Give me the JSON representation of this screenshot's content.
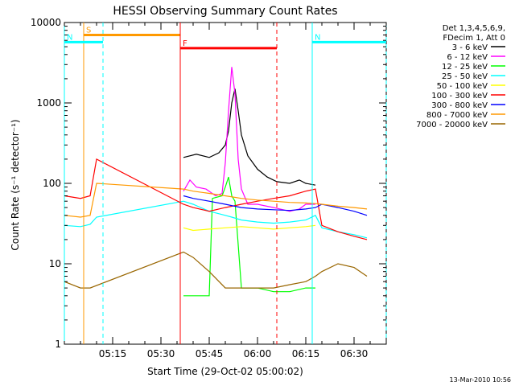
{
  "chart_data": {
    "type": "line",
    "title": "HESSI Observing Summary Count Rates",
    "xlabel": "Start Time (29-Oct-02 05:00:02)",
    "ylabel": "Count Rate (s⁻¹ detector⁻¹)",
    "yscale": "log",
    "ylim": [
      1,
      10000
    ],
    "xlim": [
      "05:00",
      "06:40"
    ],
    "x_ticks": [
      "05:15",
      "05:30",
      "05:45",
      "06:00",
      "06:15",
      "06:30"
    ],
    "y_ticks": [
      "1",
      "10",
      "100",
      "1000",
      "10000"
    ],
    "legend": {
      "placement": "right",
      "header_lines": [
        "Det 1,3,4,5,6,9,",
        "FDecim 1, Att 0"
      ]
    },
    "series": [
      {
        "name": "3 - 6 keV",
        "color": "#000000",
        "x": [
          "05:37",
          "05:41",
          "05:45",
          "05:48",
          "05:50",
          "05:51",
          "05:52",
          "05:53",
          "05:54",
          "05:55",
          "05:57",
          "06:00",
          "06:03",
          "06:06",
          "06:10",
          "06:13",
          "06:15",
          "06:18"
        ],
        "y": [
          210,
          230,
          210,
          240,
          300,
          450,
          1000,
          1500,
          800,
          400,
          220,
          150,
          120,
          105,
          100,
          110,
          100,
          95
        ]
      },
      {
        "name": "6 - 12 keV",
        "color": "#ff00ff",
        "x": [
          "05:37",
          "05:39",
          "05:41",
          "05:44",
          "05:47",
          "05:49",
          "05:50",
          "05:51",
          "05:52",
          "05:53",
          "05:54",
          "05:55",
          "05:57",
          "06:00",
          "06:05",
          "06:10",
          "06:13",
          "06:15",
          "06:18"
        ],
        "y": [
          80,
          110,
          90,
          85,
          70,
          75,
          180,
          800,
          2800,
          1300,
          200,
          85,
          55,
          55,
          50,
          45,
          48,
          55,
          55
        ]
      },
      {
        "name": "12 - 25 keV",
        "color": "#00ff00",
        "x": [
          "05:37",
          "05:42",
          "05:45",
          "05:46",
          "05:49",
          "05:50",
          "05:51",
          "05:52",
          "05:53",
          "05:55",
          "06:00",
          "06:05",
          "06:10",
          "06:15",
          "06:18"
        ],
        "y": [
          4,
          4,
          4,
          65,
          70,
          90,
          120,
          70,
          60,
          5,
          5,
          4.5,
          4.5,
          5,
          5
        ]
      },
      {
        "name": "25 - 50 keV",
        "color": "#00ffff",
        "x": [
          "05:00",
          "05:05",
          "05:08",
          "05:10",
          "05:37",
          "05:40",
          "05:45",
          "05:50",
          "05:52",
          "05:55",
          "06:00",
          "06:05",
          "06:10",
          "06:15",
          "06:18",
          "06:20",
          "06:25",
          "06:30",
          "06:34"
        ],
        "y": [
          30,
          29,
          31,
          38,
          60,
          55,
          45,
          40,
          38,
          35,
          33,
          32,
          33,
          35,
          40,
          28,
          25,
          23,
          21
        ]
      },
      {
        "name": "50 - 100 keV",
        "color": "#ffff00",
        "x": [
          "05:37",
          "05:40",
          "05:45",
          "05:50",
          "05:55",
          "06:00",
          "06:05",
          "06:10",
          "06:15",
          "06:18"
        ],
        "y": [
          28,
          26,
          27,
          28,
          29,
          28,
          27,
          28,
          29,
          30
        ]
      },
      {
        "name": "100 - 300 keV",
        "color": "#ff0000",
        "x": [
          "05:00",
          "05:05",
          "05:08",
          "05:10",
          "05:37",
          "05:40",
          "05:45",
          "05:50",
          "05:55",
          "06:00",
          "06:05",
          "06:10",
          "06:15",
          "06:18",
          "06:20",
          "06:25",
          "06:30",
          "06:34"
        ],
        "y": [
          70,
          65,
          70,
          200,
          55,
          50,
          45,
          50,
          55,
          60,
          65,
          70,
          80,
          85,
          30,
          25,
          22,
          20
        ]
      },
      {
        "name": "300 - 800 keV",
        "color": "#0000ff",
        "x": [
          "05:37",
          "05:40",
          "05:45",
          "05:50",
          "05:55",
          "06:00",
          "06:05",
          "06:10",
          "06:15",
          "06:18",
          "06:20",
          "06:25",
          "06:30",
          "06:34"
        ],
        "y": [
          70,
          65,
          60,
          55,
          50,
          48,
          47,
          46,
          48,
          50,
          55,
          50,
          45,
          40
        ]
      },
      {
        "name": "800 - 7000 keV",
        "color": "#ff9900",
        "x": [
          "05:00",
          "05:05",
          "05:08",
          "05:10",
          "05:37",
          "05:40",
          "05:45",
          "05:50",
          "05:55",
          "06:00",
          "06:05",
          "06:10",
          "06:15",
          "06:18",
          "06:20",
          "06:25",
          "06:30",
          "06:34"
        ],
        "y": [
          40,
          38,
          40,
          100,
          85,
          80,
          75,
          70,
          65,
          62,
          60,
          58,
          57,
          56,
          55,
          52,
          50,
          48
        ]
      },
      {
        "name": "7000 - 20000 keV",
        "color": "#996600",
        "x": [
          "05:00",
          "05:05",
          "05:08",
          "05:37",
          "05:40",
          "05:45",
          "05:50",
          "05:55",
          "06:00",
          "06:05",
          "06:10",
          "06:15",
          "06:18",
          "06:20",
          "06:25",
          "06:30",
          "06:34"
        ],
        "y": [
          6,
          5,
          5,
          14,
          12,
          8,
          5,
          5,
          5,
          5,
          5.5,
          6,
          7,
          8,
          10,
          9,
          7
        ]
      }
    ],
    "flags": [
      {
        "label": "S",
        "color": "#ff9900",
        "x_start": "05:06",
        "x_end": "05:36",
        "level": 7000
      },
      {
        "label": "N",
        "color": "#00ffff",
        "x_start": "05:00",
        "x_end": "05:12",
        "level": 5700
      },
      {
        "label": "N",
        "color": "#00ffff",
        "x_start": "06:17",
        "x_end": "06:40",
        "level": 5700
      },
      {
        "label": "F",
        "color": "#ff0000",
        "x_start": "05:36",
        "x_end": "06:06",
        "level": 4800
      }
    ]
  },
  "footer": {
    "timestamp": "13-Mar-2010 10:56"
  }
}
